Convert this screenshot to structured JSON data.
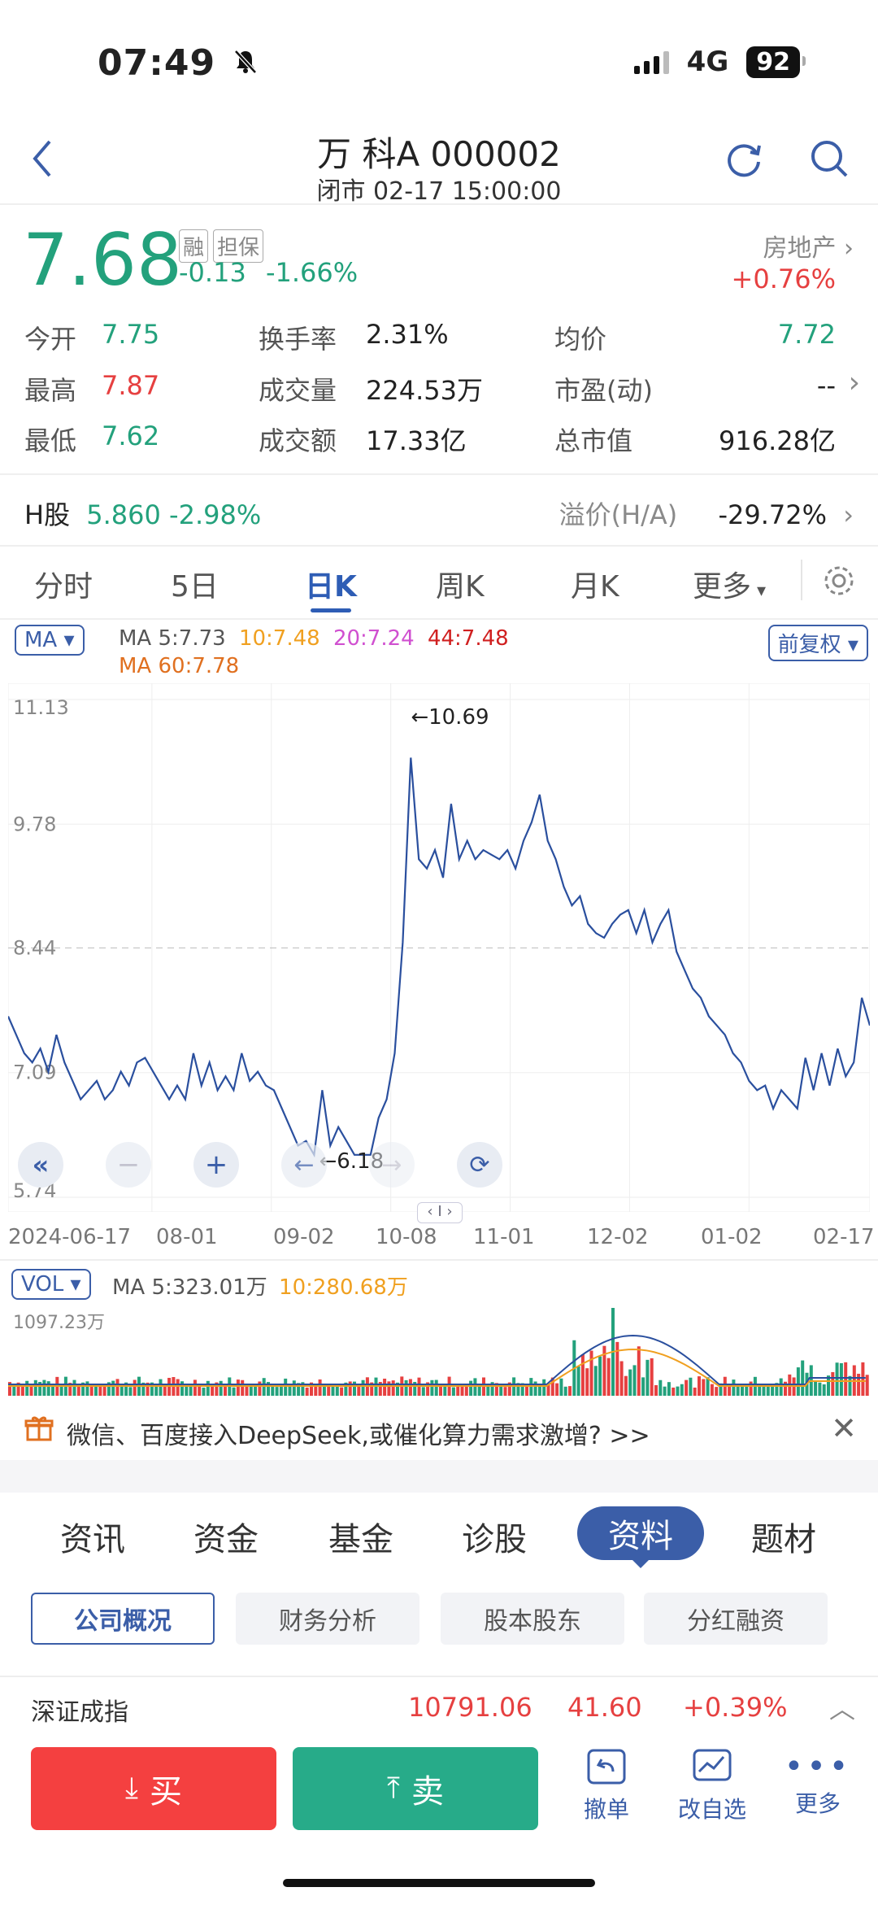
{
  "status_bar": {
    "time": "07:49",
    "network": "4G",
    "battery": "92"
  },
  "nav": {
    "title": "万 科A  000002",
    "subtitle": "闭市 02-17 15:00:00"
  },
  "quote": {
    "price": "7.68",
    "tag_margin": "融",
    "tag_guarantee": "担保",
    "change": "-0.13",
    "change_pct": "-1.66%",
    "sector_name": "房地产",
    "sector_change": "+0.76%"
  },
  "stats": {
    "open_label": "今开",
    "open": "7.75",
    "high_label": "最高",
    "high": "7.87",
    "low_label": "最低",
    "low": "7.62",
    "turnover_label": "换手率",
    "turnover": "2.31%",
    "volume_label": "成交量",
    "volume": "224.53万",
    "amount_label": "成交额",
    "amount": "17.33亿",
    "avg_label": "均价",
    "avg": "7.72",
    "pe_label": "市盈(动)",
    "pe": "--",
    "mcap_label": "总市值",
    "mcap": "916.28亿"
  },
  "h_share": {
    "label": "H股",
    "value": "5.860 -2.98%",
    "premium_label": "溢价(H/A)",
    "premium": "-29.72%"
  },
  "chart_tabs": [
    "分时",
    "5日",
    "日K",
    "周K",
    "月K",
    "更多"
  ],
  "ma_bar": {
    "selector": "MA",
    "ma5": "MA 5:7.73",
    "ma10": "10:7.48",
    "ma20": "20:7.24",
    "ma44": "44:7.48",
    "ma60": "MA 60:7.78",
    "adjust": "前复权"
  },
  "chart_data": {
    "type": "line",
    "title": "",
    "y_ticks": [
      "11.13",
      "9.78",
      "8.44",
      "7.09",
      "5.74"
    ],
    "ylim": [
      5.74,
      11.13
    ],
    "x_ticks": [
      "2024-06-17",
      "08-01",
      "09-02",
      "10-08",
      "11-01",
      "12-02",
      "01-02",
      "02-17"
    ],
    "annotations": {
      "max": "←10.69",
      "min": "←6.18"
    },
    "series": [
      {
        "values": [
          7.7,
          7.5,
          7.3,
          7.2,
          7.35,
          7.1,
          7.5,
          7.2,
          7.0,
          6.8,
          6.9,
          7.0,
          6.8,
          6.9,
          7.1,
          6.95,
          7.2,
          7.25,
          7.1,
          6.95,
          6.8,
          6.95,
          6.8,
          7.3,
          6.95,
          7.2,
          6.9,
          7.05,
          6.9,
          7.3,
          7.0,
          7.1,
          6.95,
          6.9,
          6.7,
          6.5,
          6.3,
          6.35,
          6.2,
          6.9,
          6.3,
          6.5,
          6.35,
          6.2,
          6.2,
          6.2,
          6.6,
          6.8,
          7.3,
          8.5,
          10.5,
          9.4,
          9.3,
          9.5,
          9.2,
          10.0,
          9.4,
          9.6,
          9.4,
          9.5,
          9.45,
          9.4,
          9.5,
          9.3,
          9.6,
          9.8,
          10.1,
          9.6,
          9.4,
          9.1,
          8.9,
          9.0,
          8.7,
          8.6,
          8.55,
          8.7,
          8.8,
          8.85,
          8.6,
          8.85,
          8.5,
          8.7,
          8.85,
          8.4,
          8.2,
          8.0,
          7.9,
          7.7,
          7.6,
          7.5,
          7.3,
          7.2,
          7.0,
          6.9,
          6.95,
          6.7,
          6.9,
          6.8,
          6.7,
          7.25,
          6.9,
          7.3,
          6.95,
          7.35,
          7.05,
          7.2,
          7.9,
          7.6
        ]
      }
    ],
    "volume": {
      "selector": "VOL",
      "ma5": "MA 5:323.01万",
      "ma10": "10:280.68万",
      "max_label": "1097.23万"
    }
  },
  "banner": {
    "text": "微信、百度接入DeepSeek,或催化算力需求激增? >>"
  },
  "info_tabs": [
    "资讯",
    "资金",
    "基金",
    "诊股",
    "资料",
    "题材"
  ],
  "info_subtabs": [
    "公司概况",
    "财务分析",
    "股本股东",
    "分红融资"
  ],
  "index_bar": {
    "name": "深证成指",
    "value": "10791.06",
    "change": "41.60",
    "pct": "+0.39%"
  },
  "actions": {
    "buy": "买",
    "sell": "卖",
    "cancel": "撤单",
    "edit_watch": "改自选",
    "more": "更多"
  },
  "colors": {
    "up": "#e64040",
    "down": "#23a17c",
    "accent": "#2e5db5"
  }
}
